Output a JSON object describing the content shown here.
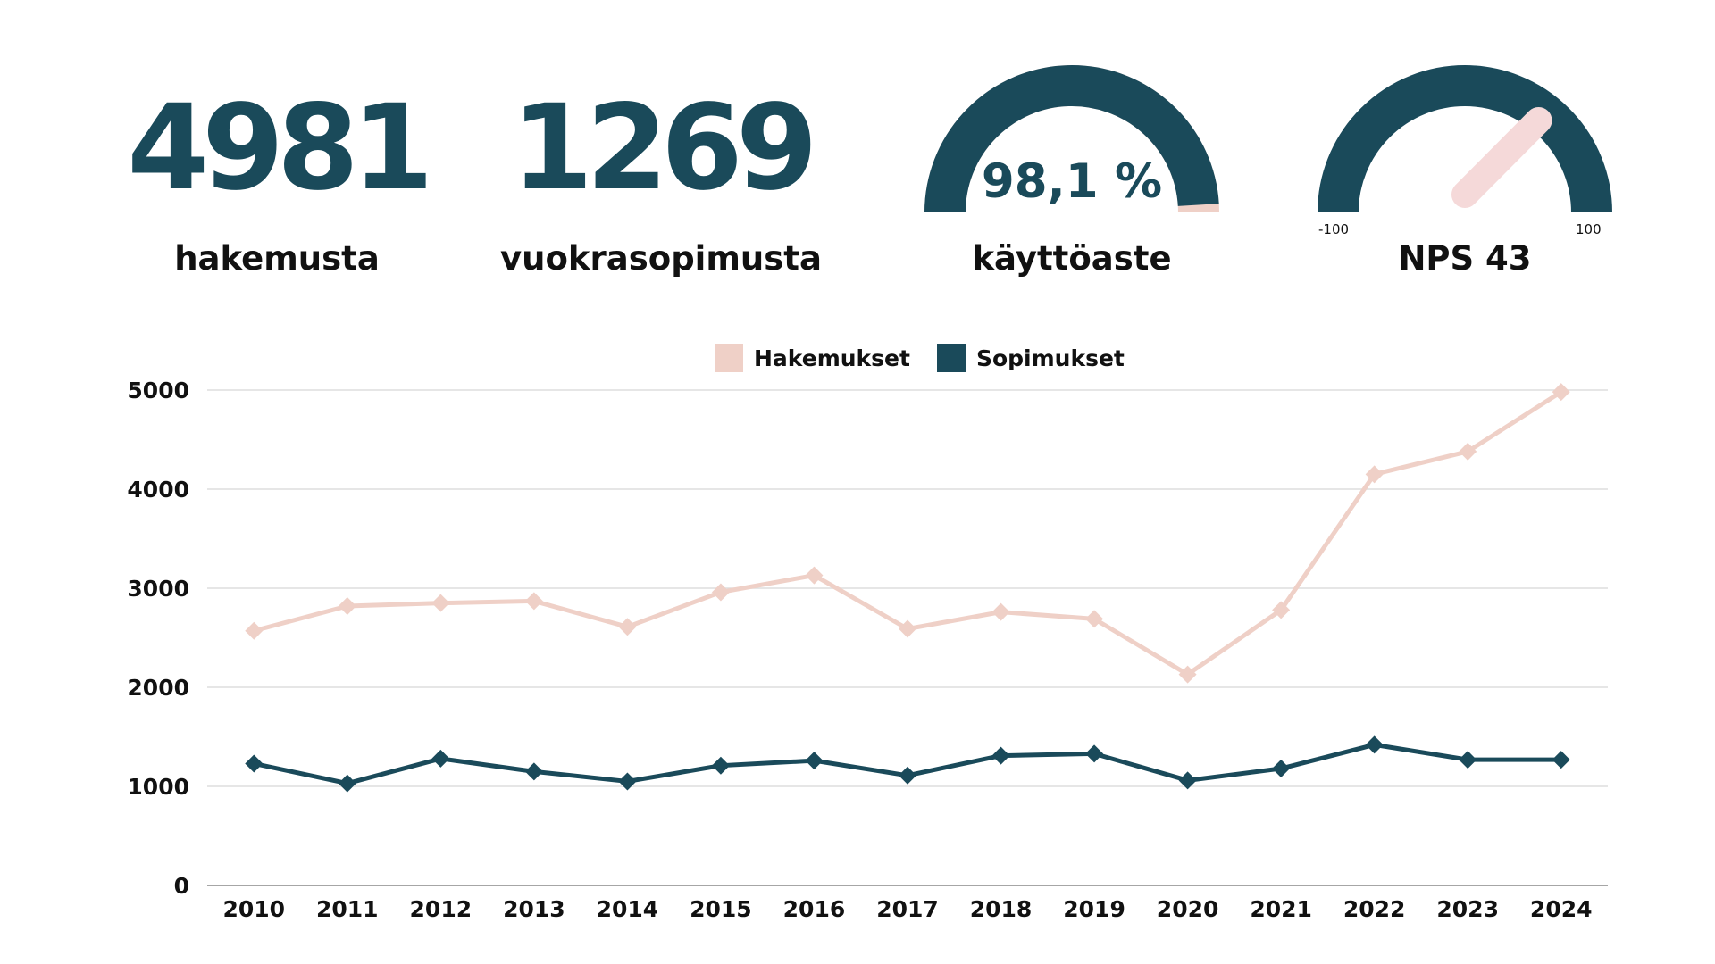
{
  "kpis": {
    "applications": {
      "value": "4981",
      "label": "hakemusta"
    },
    "contracts": {
      "value": "1269",
      "label": "vuokrasopimusta"
    },
    "occupancy": {
      "value_text": "98,1 %",
      "fraction": 0.981,
      "label": "käyttöaste"
    },
    "nps": {
      "label": "NPS 43",
      "value": 43,
      "min_label": "-100",
      "max_label": "100",
      "min": -100,
      "max": 100
    }
  },
  "colors": {
    "dark": "#1a4a5a",
    "light": "#efd0c7",
    "needle": "#f5d9d9",
    "grid": "#dddddd",
    "text": "#111111"
  },
  "chart_data": {
    "type": "line",
    "x": [
      "2010",
      "2011",
      "2012",
      "2013",
      "2014",
      "2015",
      "2016",
      "2017",
      "2018",
      "2019",
      "2020",
      "2021",
      "2022",
      "2023",
      "2024"
    ],
    "series": [
      {
        "name": "Hakemukset",
        "color": "#efd0c7",
        "marker": "diamond",
        "values": [
          2570,
          2820,
          2850,
          2870,
          2610,
          2960,
          3130,
          2590,
          2760,
          2690,
          2130,
          2780,
          4150,
          4380,
          4981
        ]
      },
      {
        "name": "Sopimukset",
        "color": "#1a4a5a",
        "marker": "diamond",
        "values": [
          1230,
          1030,
          1280,
          1150,
          1050,
          1210,
          1260,
          1110,
          1310,
          1330,
          1060,
          1180,
          1420,
          1269,
          1269
        ]
      }
    ],
    "ylim": [
      0,
      5000
    ],
    "yticks": [
      0,
      1000,
      2000,
      3000,
      4000,
      5000
    ],
    "grid": true,
    "legend_position": "top-center"
  }
}
